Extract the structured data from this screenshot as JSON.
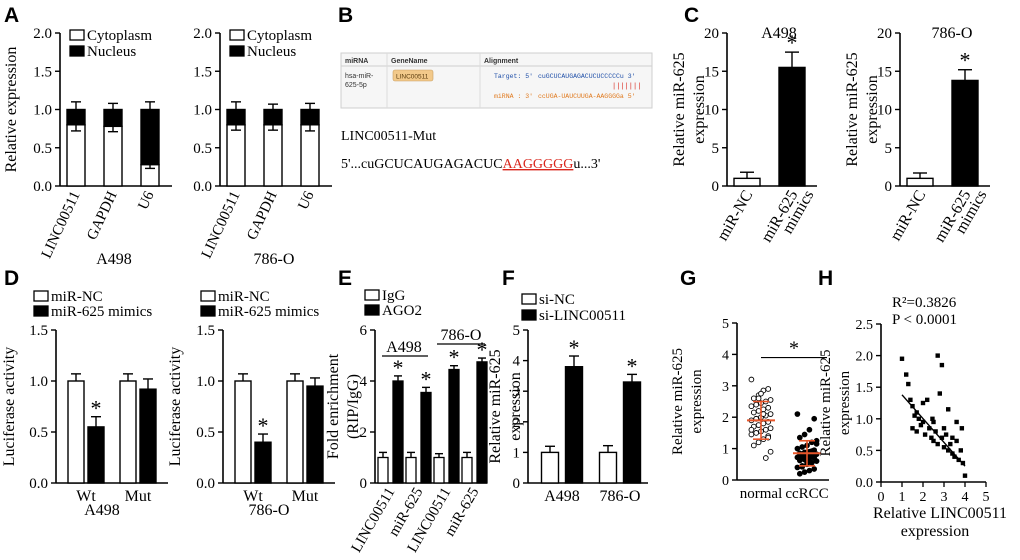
{
  "chart_data": [
    {
      "id": "A1",
      "panel": "A",
      "type": "bar",
      "stacked": true,
      "categories": [
        "LINC00511",
        "GAPDH",
        "U6"
      ],
      "series": [
        {
          "name": "Cytoplasm",
          "values": [
            0.8,
            0.78,
            0.28
          ],
          "color": "#ffffff"
        },
        {
          "name": "Nucleus",
          "values": [
            0.2,
            0.22,
            0.72
          ],
          "color": "#000000"
        }
      ],
      "errors": [
        0.1,
        0.08,
        0.1
      ],
      "err_low": [
        0.08,
        0.07,
        0.05
      ],
      "ylabel": "Relative expression",
      "ylim": [
        0,
        2.0
      ],
      "yticks": [
        "0.0",
        "0.5",
        "1.0",
        "1.5",
        "2.0"
      ],
      "group_label": "A498"
    },
    {
      "id": "A2",
      "panel": "A",
      "type": "bar",
      "stacked": true,
      "categories": [
        "LINC00511",
        "GAPDH",
        "U6"
      ],
      "series": [
        {
          "name": "Cytoplasm",
          "values": [
            0.8,
            0.8,
            0.8
          ],
          "color": "#ffffff"
        },
        {
          "name": "Nucleus",
          "values": [
            0.2,
            0.2,
            0.2
          ],
          "color": "#000000"
        }
      ],
      "errors": [
        0.1,
        0.07,
        0.08
      ],
      "err_low": [
        0.07,
        0.07,
        0.08
      ],
      "ylabel": "Relative expression",
      "ylim": [
        0,
        2.0
      ],
      "yticks": [
        "0.0",
        "0.5",
        "1.0",
        "1.5",
        "2.0"
      ],
      "group_label": "786-O"
    },
    {
      "id": "C1",
      "panel": "C",
      "type": "bar",
      "title": "A498",
      "categories": [
        "miR-NC",
        "miR-625 mimics"
      ],
      "series": [
        {
          "values": [
            1.0,
            15.5
          ],
          "errors": [
            0.8,
            2.0
          ]
        }
      ],
      "colors": [
        "#ffffff",
        "#000000"
      ],
      "sig": [
        false,
        true
      ],
      "ylabel": "Relative miR-625 expression",
      "ylim": [
        0,
        20
      ],
      "yticks": [
        "0",
        "5",
        "10",
        "15",
        "20"
      ]
    },
    {
      "id": "C2",
      "panel": "C",
      "type": "bar",
      "title": "786-O",
      "categories": [
        "miR-NC",
        "miR-625 mimics"
      ],
      "series": [
        {
          "values": [
            1.0,
            13.8
          ],
          "errors": [
            0.7,
            1.4
          ]
        }
      ],
      "colors": [
        "#ffffff",
        "#000000"
      ],
      "sig": [
        false,
        true
      ],
      "ylabel": "Relative miR-625 expression",
      "ylim": [
        0,
        20
      ],
      "yticks": [
        "0",
        "5",
        "10",
        "15",
        "20"
      ]
    },
    {
      "id": "D1",
      "panel": "D",
      "type": "bar",
      "categories": [
        "Wt",
        "Mut"
      ],
      "series": [
        {
          "name": "miR-NC",
          "values": [
            1.0,
            1.0
          ],
          "errors": [
            0.07,
            0.07
          ],
          "color": "#ffffff"
        },
        {
          "name": "miR-625 mimics",
          "values": [
            0.55,
            0.92
          ],
          "errors": [
            0.1,
            0.1
          ],
          "color": "#000000",
          "sig": [
            true,
            false
          ]
        }
      ],
      "ylabel": "Luciferase activity",
      "ylim": [
        0,
        1.5
      ],
      "yticks": [
        "0.0",
        "0.5",
        "1.0",
        "1.5"
      ],
      "group_label": "A498"
    },
    {
      "id": "D2",
      "panel": "D",
      "type": "bar",
      "categories": [
        "Wt",
        "Mut"
      ],
      "series": [
        {
          "name": "miR-NC",
          "values": [
            1.0,
            1.0
          ],
          "errors": [
            0.07,
            0.07
          ],
          "color": "#ffffff"
        },
        {
          "name": "miR-625 mimics",
          "values": [
            0.4,
            0.95
          ],
          "errors": [
            0.08,
            0.08
          ],
          "color": "#000000",
          "sig": [
            true,
            false
          ]
        }
      ],
      "ylabel": "Luciferase activity",
      "ylim": [
        0,
        1.5
      ],
      "yticks": [
        "0.0",
        "0.5",
        "1.0",
        "1.5"
      ],
      "group_label": "786-O"
    },
    {
      "id": "E",
      "panel": "E",
      "type": "bar",
      "categories": [
        "LINC00511",
        "miR-625",
        "LINC00511",
        "miR-625"
      ],
      "cell_groups": [
        "A498",
        "786-O"
      ],
      "series": [
        {
          "name": "IgG",
          "values": [
            1.0,
            1.0,
            1.0,
            1.0
          ],
          "errors": [
            0.2,
            0.2,
            0.15,
            0.2
          ],
          "color": "#ffffff"
        },
        {
          "name": "AGO2",
          "values": [
            4.0,
            3.55,
            4.45,
            4.75
          ],
          "errors": [
            0.2,
            0.2,
            0.15,
            0.15
          ],
          "color": "#000000",
          "sig": [
            true,
            true,
            true,
            true
          ]
        }
      ],
      "ylabel": "Fold enrichment (RIP/IgG)",
      "ylim": [
        0,
        6
      ],
      "yticks": [
        "0",
        "2",
        "4",
        "6"
      ]
    },
    {
      "id": "F",
      "panel": "F",
      "type": "bar",
      "categories": [
        "A498",
        "786-O"
      ],
      "series": [
        {
          "name": "si-NC",
          "values": [
            1.0,
            1.0
          ],
          "errors": [
            0.2,
            0.22
          ],
          "color": "#ffffff"
        },
        {
          "name": "si-LINC00511",
          "values": [
            3.8,
            3.3
          ],
          "errors": [
            0.35,
            0.25
          ],
          "color": "#000000",
          "sig": [
            true,
            true
          ]
        }
      ],
      "ylabel": "Relative miR-625 expression",
      "ylim": [
        0,
        5
      ],
      "yticks": [
        "0",
        "1",
        "2",
        "3",
        "4",
        "5"
      ]
    },
    {
      "id": "G",
      "panel": "G",
      "type": "scatter",
      "categories": [
        "normal",
        "ccRCC"
      ],
      "means": [
        1.9,
        0.85
      ],
      "sd": [
        0.6,
        0.4
      ],
      "points": {
        "normal": [
          3.2,
          2.9,
          2.85,
          2.7,
          2.6,
          2.55,
          2.5,
          2.45,
          2.4,
          2.35,
          2.3,
          2.25,
          2.2,
          2.15,
          2.1,
          2.05,
          2.0,
          1.95,
          1.9,
          1.85,
          1.8,
          1.75,
          1.7,
          1.65,
          1.6,
          1.55,
          1.5,
          1.45,
          1.4,
          1.3,
          1.2,
          1.1,
          0.9,
          0.7,
          2.75,
          1.95,
          1.6,
          1.35,
          2.1,
          2.6
        ],
        "ccRCC": [
          2.1,
          1.95,
          1.6,
          1.45,
          1.35,
          1.25,
          1.2,
          1.1,
          1.05,
          1.0,
          0.95,
          0.9,
          0.88,
          0.85,
          0.82,
          0.8,
          0.78,
          0.75,
          0.72,
          0.7,
          0.68,
          0.65,
          0.62,
          0.6,
          0.55,
          0.5,
          0.45,
          0.4,
          0.35,
          0.3,
          0.25,
          0.2,
          1.15,
          0.92,
          0.58,
          0.42
        ]
      },
      "ylabel": "Relative miR-625 expression",
      "ylim": [
        0,
        5
      ],
      "yticks": [
        "0",
        "1",
        "2",
        "3",
        "4",
        "5"
      ],
      "sig_label": "*"
    },
    {
      "id": "H",
      "panel": "H",
      "type": "scatter",
      "points": [
        [
          1.0,
          1.95
        ],
        [
          1.3,
          1.55
        ],
        [
          1.4,
          1.3
        ],
        [
          1.5,
          1.2
        ],
        [
          1.6,
          1.05
        ],
        [
          1.7,
          1.1
        ],
        [
          1.8,
          1.0
        ],
        [
          1.9,
          0.9
        ],
        [
          2.0,
          0.95
        ],
        [
          1.5,
          0.85
        ],
        [
          1.7,
          0.8
        ],
        [
          2.1,
          0.75
        ],
        [
          2.2,
          1.3
        ],
        [
          2.3,
          0.85
        ],
        [
          2.4,
          0.7
        ],
        [
          2.5,
          0.95
        ],
        [
          2.5,
          0.65
        ],
        [
          2.6,
          0.8
        ],
        [
          2.7,
          0.6
        ],
        [
          2.8,
          1.4
        ],
        [
          2.9,
          0.7
        ],
        [
          3.0,
          0.55
        ],
        [
          3.0,
          0.85
        ],
        [
          3.1,
          0.75
        ],
        [
          3.2,
          0.5
        ],
        [
          3.2,
          1.15
        ],
        [
          3.3,
          0.6
        ],
        [
          3.4,
          0.45
        ],
        [
          3.4,
          0.7
        ],
        [
          3.5,
          0.4
        ],
        [
          3.6,
          0.65
        ],
        [
          3.7,
          0.35
        ],
        [
          3.8,
          0.5
        ],
        [
          3.9,
          0.3
        ],
        [
          4.0,
          0.1
        ],
        [
          2.7,
          2.0
        ],
        [
          2.9,
          1.85
        ],
        [
          3.6,
          0.95
        ],
        [
          2.0,
          1.25
        ],
        [
          1.2,
          1.7
        ],
        [
          3.85,
          0.85
        ],
        [
          2.45,
          1.0
        ]
      ],
      "fit": {
        "x": [
          1.0,
          4.0
        ],
        "y": [
          1.38,
          0.25
        ]
      },
      "annotations": [
        "R²=0.3826",
        "P < 0.0001"
      ],
      "xlabel": "Relative LINC00511 expression",
      "ylabel": "Relative miR-625 expression",
      "xlim": [
        0,
        5
      ],
      "ylim": [
        0,
        2.5
      ],
      "xticks": [
        "0",
        "1",
        "2",
        "3",
        "4",
        "5"
      ],
      "yticks": [
        "0.0",
        "0.5",
        "1.0",
        "1.5",
        "2.0",
        "2.5"
      ]
    }
  ],
  "panel_b": {
    "headers": [
      "miRNA",
      "GeneName",
      "Alignment"
    ],
    "mirna_line1": "hsa-miR-",
    "mirna_line2": "625-5p",
    "gene": "LINC00511",
    "target_label": "Target: 5'",
    "target_seq": "cuGCUCAUGAGACUCUCCCCCu 3'",
    "pairs": "|||||||",
    "mirna_label": "miRNA : 3'",
    "mirna_seq": "ccUGA-UAUCUUGA-AAGGGGa 5'",
    "mut_title": "LINC00511-Mut",
    "mut_prefix": "5'...cuGCUCAUGAGACUC",
    "mut_highlight": "AAGGGGG",
    "mut_suffix": "u...3'"
  },
  "panel_letters": [
    "A",
    "B",
    "C",
    "D",
    "E",
    "F",
    "G",
    "H"
  ],
  "colors": {
    "bar_dark": "#000000",
    "bar_light": "#ffffff",
    "mean_sd": "#e8562a",
    "mut_red": "#d9261c",
    "target_blue": "#1f4fa8",
    "mirna_orange": "#e07a1f",
    "gene_tag": "#f2c98a"
  }
}
